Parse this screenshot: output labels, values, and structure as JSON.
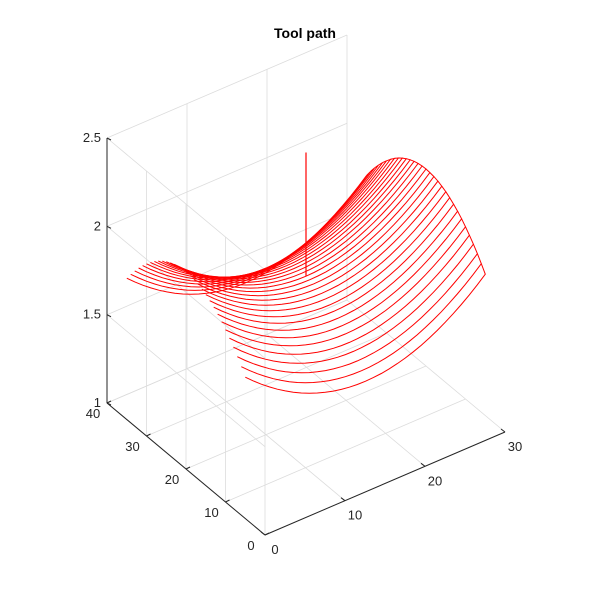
{
  "chart_data": {
    "type": "line",
    "kind": "3d-tool-path",
    "title": "Tool path",
    "xlim": [
      0,
      30
    ],
    "ylim": [
      0,
      40
    ],
    "zlim": [
      1,
      2.5
    ],
    "x_ticks": [
      0,
      10,
      20,
      30
    ],
    "y_ticks": [
      0,
      10,
      20,
      30,
      40
    ],
    "z_ticks": [
      1,
      1.5,
      2,
      2.5
    ],
    "x_tick_labels": [
      "0",
      "10",
      "20",
      "30"
    ],
    "y_tick_labels": [
      "0",
      "10",
      "20",
      "30",
      "40"
    ],
    "z_tick_labels": [
      "1",
      "1.5",
      "2",
      "2.5"
    ],
    "grid": true,
    "line_color": "#ff0000",
    "surface": "z = 1.8 + 0.0014*((x-15)^2 - (y-20)^2) (saddle)",
    "passes": 30,
    "samples_per_pass": 31,
    "pass_spacing": 1,
    "x_range": [
      0,
      30
    ],
    "y_range": [
      5,
      35
    ],
    "plunge_line": {
      "x": 15,
      "y": 20,
      "z_from": 1.8,
      "z_to": 2.5
    }
  }
}
